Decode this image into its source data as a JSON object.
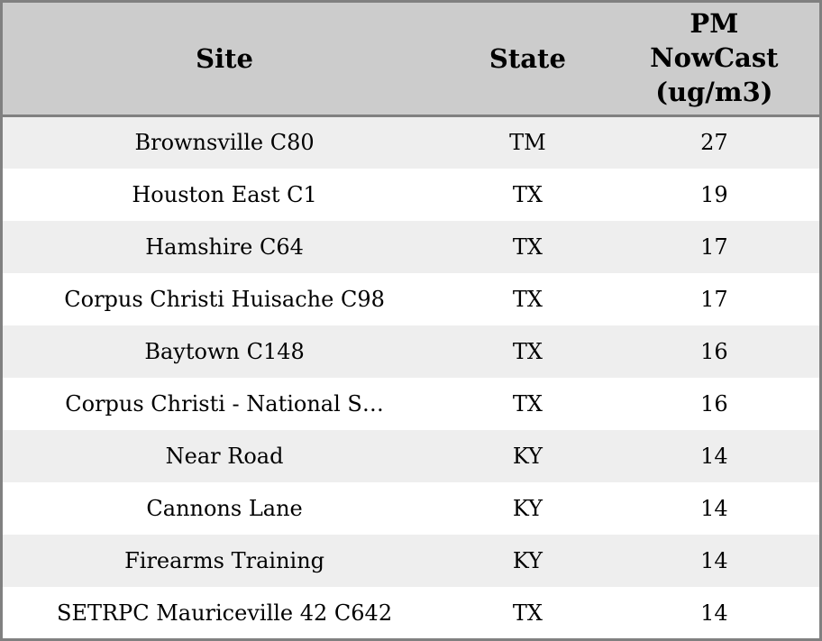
{
  "chart_data": {
    "type": "table",
    "columns": [
      {
        "id": "site",
        "label": "Site"
      },
      {
        "id": "state",
        "label": "State"
      },
      {
        "id": "pm_nowcast",
        "label": "PM NowCast (ug/m3)"
      }
    ],
    "rows": [
      [
        "Brownsville C80",
        "TM",
        27
      ],
      [
        "Houston East C1",
        "TX",
        19
      ],
      [
        "Hamshire C64",
        "TX",
        17
      ],
      [
        "Corpus Christi Huisache C98",
        "TX",
        17
      ],
      [
        "Baytown C148",
        "TX",
        16
      ],
      [
        "Corpus Christi - National S…",
        "TX",
        16
      ],
      [
        "Near Road",
        "KY",
        14
      ],
      [
        "Cannons Lane",
        "KY",
        14
      ],
      [
        "Firearms Training",
        "KY",
        14
      ],
      [
        "SETRPC Mauriceville 42 C642",
        "TX",
        14
      ]
    ]
  },
  "colors": {
    "header_bg": "#cccccc",
    "row_alt_bg": "#eeeeee",
    "row_bg": "#ffffff",
    "border": "#808080",
    "text": "#000000"
  }
}
